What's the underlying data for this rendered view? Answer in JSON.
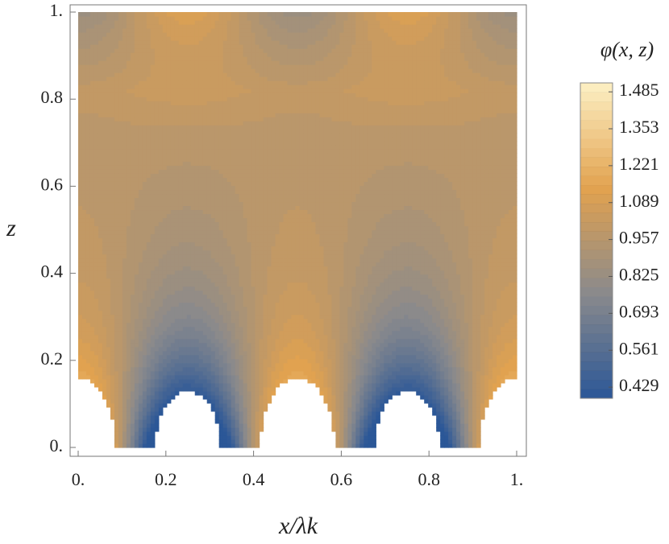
{
  "chart_data": {
    "type": "contour",
    "xlabel": "x/λk",
    "ylabel": "z",
    "colorbar_label": "φ(x, z)",
    "xlim": [
      0,
      1
    ],
    "ylim": [
      0,
      1
    ],
    "xticks": [
      {
        "value": 0,
        "label": "0."
      },
      0.2,
      0.4,
      0.6,
      0.8,
      {
        "value": 1,
        "label": "1."
      }
    ],
    "yticks": [
      {
        "value": 0,
        "label": "0."
      },
      0.2,
      0.4,
      0.6,
      0.8,
      {
        "value": 1,
        "label": "1."
      }
    ],
    "clim": [
      0.389,
      1.517
    ],
    "cticks": [
      0.429,
      0.561,
      0.693,
      0.825,
      0.957,
      1.089,
      1.221,
      1.353,
      1.485
    ],
    "colormap": [
      "#2b5797",
      "#8a8a8c",
      "#e2a24f",
      "#fdf0c4"
    ]
  }
}
